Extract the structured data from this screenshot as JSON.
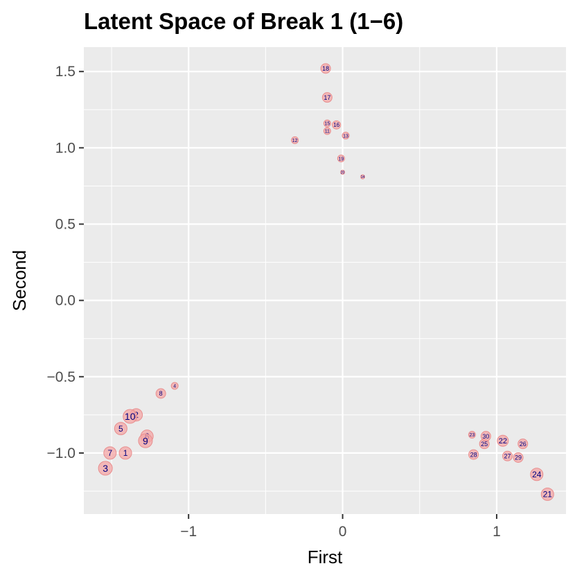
{
  "chart_data": {
    "type": "scatter",
    "title": "Latent Space of Break 1 (1−6)",
    "xlabel": "First",
    "ylabel": "Second",
    "xlim": [
      -1.68,
      1.45
    ],
    "ylim": [
      -1.4,
      1.66
    ],
    "x_ticks": [
      {
        "value": -1,
        "label": "−1"
      },
      {
        "value": 0,
        "label": "0"
      },
      {
        "value": 1,
        "label": "1"
      }
    ],
    "y_ticks": [
      {
        "value": -1.0,
        "label": "−1.0"
      },
      {
        "value": -0.5,
        "label": "−0.5"
      },
      {
        "value": 0.0,
        "label": "0.0"
      },
      {
        "value": 0.5,
        "label": "0.5"
      },
      {
        "value": 1.0,
        "label": "1.0"
      },
      {
        "value": 1.5,
        "label": "1.5"
      }
    ],
    "grid": true,
    "point_color": "#f4a6a6",
    "label_color": "#000080",
    "panel_color": "#ebebeb",
    "points": [
      {
        "label": "1",
        "x": -1.41,
        "y": -1.0,
        "size": 9
      },
      {
        "label": "2",
        "x": -1.34,
        "y": -0.75,
        "size": 9
      },
      {
        "label": "3",
        "x": -1.54,
        "y": -1.1,
        "size": 10
      },
      {
        "label": "4",
        "x": -1.09,
        "y": -0.56,
        "size": 5
      },
      {
        "label": "5",
        "x": -1.44,
        "y": -0.84,
        "size": 9
      },
      {
        "label": "6",
        "x": -1.27,
        "y": -0.89,
        "size": 9
      },
      {
        "label": "7",
        "x": -1.51,
        "y": -1.0,
        "size": 9
      },
      {
        "label": "8",
        "x": -1.18,
        "y": -0.61,
        "size": 7
      },
      {
        "label": "9",
        "x": -1.28,
        "y": -0.92,
        "size": 10
      },
      {
        "label": "10",
        "x": -1.38,
        "y": -0.76,
        "size": 10
      },
      {
        "label": "11",
        "x": -0.1,
        "y": 1.11,
        "size": 5
      },
      {
        "label": "12",
        "x": -0.31,
        "y": 1.05,
        "size": 5
      },
      {
        "label": "13",
        "x": 0.02,
        "y": 1.08,
        "size": 5
      },
      {
        "label": "14",
        "x": 0.13,
        "y": 0.81,
        "size": 3
      },
      {
        "label": "15",
        "x": -0.1,
        "y": 1.16,
        "size": 5
      },
      {
        "label": "16",
        "x": -0.04,
        "y": 1.15,
        "size": 6
      },
      {
        "label": "17",
        "x": -0.1,
        "y": 1.33,
        "size": 7
      },
      {
        "label": "18",
        "x": -0.11,
        "y": 1.52,
        "size": 7
      },
      {
        "label": "19",
        "x": -0.01,
        "y": 0.93,
        "size": 5
      },
      {
        "label": "20",
        "x": 0.0,
        "y": 0.84,
        "size": 3
      },
      {
        "label": "21",
        "x": 1.33,
        "y": -1.27,
        "size": 9
      },
      {
        "label": "22",
        "x": 1.04,
        "y": -0.92,
        "size": 8
      },
      {
        "label": "23",
        "x": 0.84,
        "y": -0.88,
        "size": 5
      },
      {
        "label": "24",
        "x": 1.26,
        "y": -1.14,
        "size": 9
      },
      {
        "label": "25",
        "x": 0.92,
        "y": -0.94,
        "size": 7
      },
      {
        "label": "26",
        "x": 1.17,
        "y": -0.94,
        "size": 7
      },
      {
        "label": "27",
        "x": 1.07,
        "y": -1.02,
        "size": 7
      },
      {
        "label": "28",
        "x": 0.85,
        "y": -1.01,
        "size": 7
      },
      {
        "label": "29",
        "x": 1.14,
        "y": -1.03,
        "size": 7
      },
      {
        "label": "30",
        "x": 0.93,
        "y": -0.89,
        "size": 7
      }
    ]
  }
}
